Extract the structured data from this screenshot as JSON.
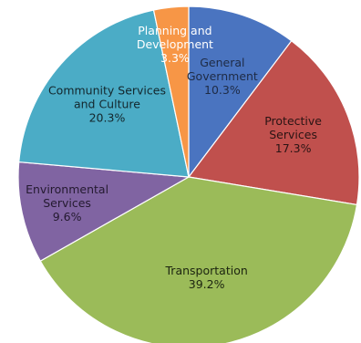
{
  "chart_data": {
    "type": "pie",
    "title": "",
    "start_angle_deg": 0,
    "direction": "clockwise",
    "slices": [
      {
        "label_lines": [
          "General",
          "Government"
        ],
        "value_label": "10.3%",
        "value": 10.3,
        "color": "#4a74c0",
        "text_color": "#1e2b45"
      },
      {
        "label_lines": [
          "Protective",
          "Services"
        ],
        "value_label": "17.3%",
        "value": 17.3,
        "color": "#c0504d",
        "text_color": "#2a1414"
      },
      {
        "label_lines": [
          "Transportation"
        ],
        "value_label": "39.2%",
        "value": 39.2,
        "color": "#9bbb59",
        "text_color": "#1c2410"
      },
      {
        "label_lines": [
          "Environmental",
          "Services"
        ],
        "value_label": "9.6%",
        "value": 9.6,
        "color": "#8064a2",
        "text_color": "#241a30"
      },
      {
        "label_lines": [
          "Community Services",
          "and Culture"
        ],
        "value_label": "20.3%",
        "value": 20.3,
        "color": "#4bacc6",
        "text_color": "#13262c"
      },
      {
        "label_lines": [
          "Planning and",
          "Development"
        ],
        "value_label": "3.3%",
        "value": 3.3,
        "color": "#f79646",
        "text_color": "#ffffff"
      }
    ]
  }
}
